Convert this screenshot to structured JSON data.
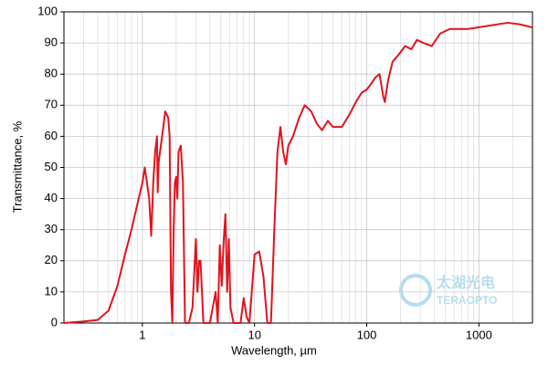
{
  "chart_data": {
    "type": "line",
    "xlabel": "Wavelength, µm",
    "ylabel": "Transmittance, %",
    "x": [
      0.2,
      0.3,
      0.4,
      0.5,
      0.6,
      0.7,
      0.8,
      0.9,
      1.0,
      1.05,
      1.1,
      1.15,
      1.2,
      1.25,
      1.3,
      1.35,
      1.37,
      1.4,
      1.5,
      1.6,
      1.7,
      1.75,
      1.8,
      1.85,
      1.9,
      1.95,
      2.0,
      2.05,
      2.1,
      2.2,
      2.3,
      2.4,
      2.6,
      2.8,
      3.0,
      3.1,
      3.2,
      3.3,
      3.5,
      4.0,
      4.5,
      4.7,
      4.9,
      5.1,
      5.3,
      5.5,
      5.7,
      5.9,
      6.1,
      6.5,
      7.5,
      8.0,
      8.5,
      9.0,
      10,
      11,
      12,
      13,
      14,
      15,
      16,
      17,
      18,
      19,
      20,
      22,
      25,
      28,
      32,
      36,
      40,
      45,
      50,
      60,
      70,
      80,
      90,
      100,
      110,
      120,
      130,
      140,
      145,
      155,
      170,
      190,
      220,
      250,
      280,
      320,
      380,
      450,
      550,
      800,
      1200,
      1800,
      2300,
      3000
    ],
    "series": [
      {
        "name": "Transmittance",
        "color": "#e0141e",
        "values": [
          0,
          0.5,
          1,
          4,
          12,
          22,
          30,
          38,
          45,
          50,
          45,
          40,
          28,
          45,
          55,
          60,
          42,
          52,
          60,
          68,
          66,
          60,
          10,
          0,
          30,
          45,
          47,
          40,
          55,
          57,
          45,
          0,
          0,
          5,
          27,
          10,
          20,
          20,
          0,
          0,
          10,
          0,
          25,
          12,
          26,
          35,
          10,
          27,
          5,
          0,
          0,
          8,
          2,
          0,
          22,
          23,
          15,
          0,
          0,
          30,
          55,
          63,
          55,
          51,
          57,
          60,
          66,
          70,
          68,
          64,
          62,
          65,
          63,
          63,
          67,
          71,
          74,
          75,
          77,
          79,
          80,
          73,
          71,
          78,
          84,
          86,
          89,
          88,
          91,
          90,
          89,
          93,
          94.5,
          94.5,
          95.5,
          96.5,
          96,
          95
        ]
      }
    ],
    "xlim": [
      0.2,
      3000
    ],
    "ylim": [
      0,
      100
    ],
    "xticks": [
      1,
      10,
      100,
      1000
    ],
    "yticks": [
      0,
      10,
      20,
      30,
      40,
      50,
      60,
      70,
      80,
      90,
      100
    ],
    "xscale": "log",
    "grid": true,
    "watermark": [
      "太湖光电",
      "TERAOPTO"
    ]
  }
}
